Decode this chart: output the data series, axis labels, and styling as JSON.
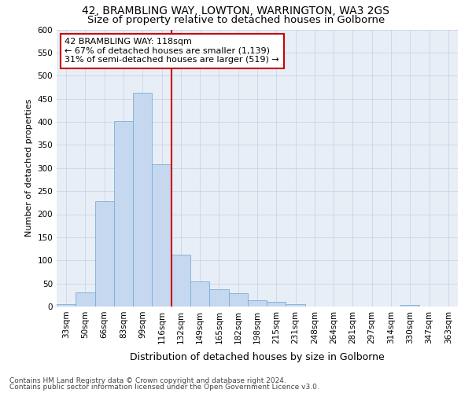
{
  "title_line1": "42, BRAMBLING WAY, LOWTON, WARRINGTON, WA3 2GS",
  "title_line2": "Size of property relative to detached houses in Golborne",
  "xlabel": "Distribution of detached houses by size in Golborne",
  "ylabel": "Number of detached properties",
  "categories": [
    "33sqm",
    "50sqm",
    "66sqm",
    "83sqm",
    "99sqm",
    "116sqm",
    "132sqm",
    "149sqm",
    "165sqm",
    "182sqm",
    "198sqm",
    "215sqm",
    "231sqm",
    "248sqm",
    "264sqm",
    "281sqm",
    "297sqm",
    "314sqm",
    "330sqm",
    "347sqm",
    "363sqm"
  ],
  "values": [
    5,
    30,
    228,
    402,
    463,
    308,
    112,
    54,
    37,
    29,
    13,
    11,
    5,
    0,
    0,
    0,
    0,
    0,
    3,
    0,
    0
  ],
  "bar_color": "#c5d8ef",
  "bar_edge_color": "#7aaed6",
  "vline_x_idx": 5,
  "vline_color": "#cc0000",
  "annotation_text": "42 BRAMBLING WAY: 118sqm\n← 67% of detached houses are smaller (1,139)\n31% of semi-detached houses are larger (519) →",
  "annotation_box_facecolor": "#ffffff",
  "annotation_box_edgecolor": "#cc0000",
  "ylim": [
    0,
    600
  ],
  "yticks": [
    0,
    50,
    100,
    150,
    200,
    250,
    300,
    350,
    400,
    450,
    500,
    550,
    600
  ],
  "footer_line1": "Contains HM Land Registry data © Crown copyright and database right 2024.",
  "footer_line2": "Contains public sector information licensed under the Open Government Licence v3.0.",
  "background_color": "#ffffff",
  "plot_bg_color": "#e8eef6",
  "grid_color": "#c8d4e8",
  "title_fontsize": 10,
  "subtitle_fontsize": 9.5,
  "axis_label_fontsize": 9,
  "tick_fontsize": 7.5,
  "annotation_fontsize": 8,
  "footer_fontsize": 6.5,
  "ylabel_fontsize": 8
}
